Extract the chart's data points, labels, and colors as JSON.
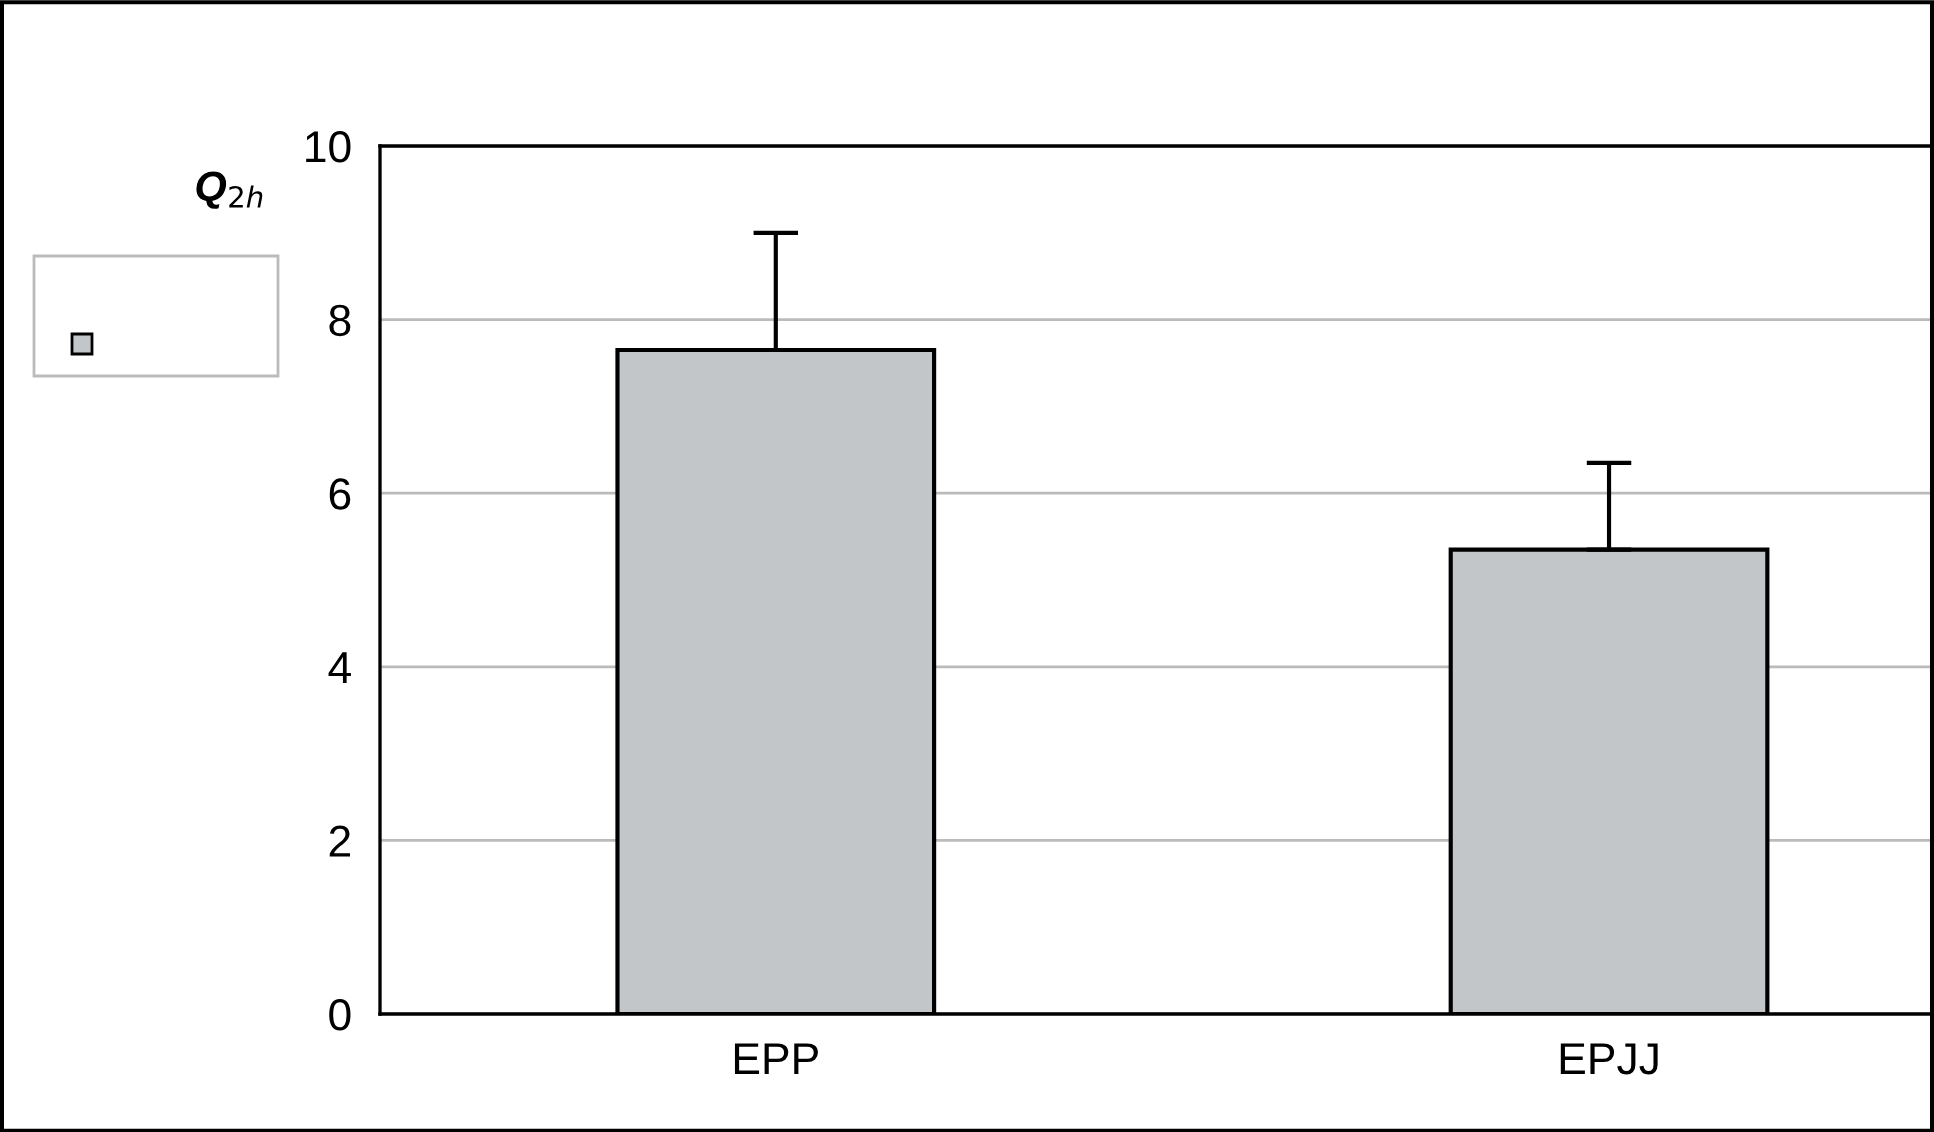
{
  "chart_data": {
    "type": "bar",
    "categories": [
      "EPP",
      "EPJJ"
    ],
    "values": [
      7.65,
      5.35
    ],
    "color": "#c3c6c9",
    "errors": [
      [
        7.65,
        9.0
      ],
      [
        5.35,
        6.35
      ]
    ],
    "legend_title": "Q$_{2h}$",
    "ylim": [
      0,
      10
    ],
    "yticks": [
      0,
      2,
      4,
      6,
      8,
      10
    ],
    "grid": "y"
  }
}
